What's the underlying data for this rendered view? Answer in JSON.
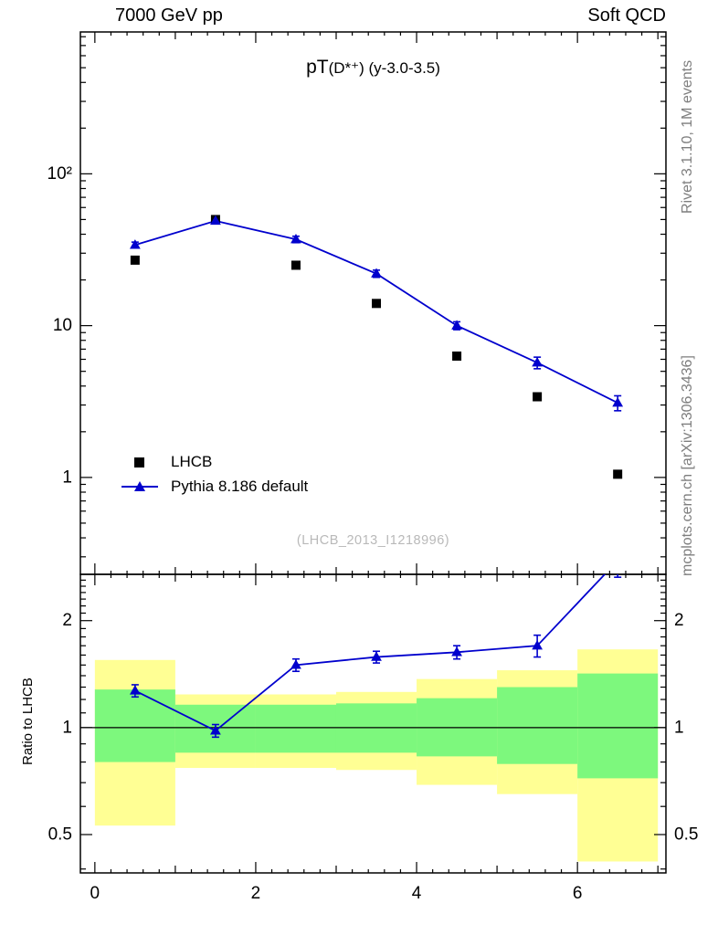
{
  "header": {
    "left": "7000 GeV pp",
    "right": "Soft QCD"
  },
  "main_panel": {
    "title_lead": "pT",
    "title_sub": "(D*⁺) (y-3.0-3.5)",
    "title_full": "pT(D*⁺) (y-3.0-3.5)",
    "watermark": "(LHCB_2013_I1218996)"
  },
  "ratio_panel": {
    "ylabel": "Ratio to LHCB"
  },
  "side_labels": {
    "top_right": "Rivet 3.1.10,  1M events",
    "bottom_right": "mcplots.cern.ch [arXiv:1306.3436]"
  },
  "legend": [
    {
      "label": "LHCB",
      "marker": "filled-square"
    },
    {
      "label": "Pythia 8.186 default",
      "marker": "line-with-triangle"
    }
  ],
  "colors": {
    "lhcb": "#000000",
    "pythia": "#0000cd",
    "band_yellow": "#ffff94",
    "band_green": "#7df87d",
    "frame": "#000000",
    "watermark": "#b9b9b9",
    "side_text": "#7e7e7e"
  },
  "chart_data": {
    "type": "line",
    "title": "pT(D*⁺) (y-3.0-3.5)",
    "x": [
      0.5,
      1.5,
      2.5,
      3.5,
      4.5,
      5.5,
      6.5
    ],
    "bin_width": 1,
    "series": [
      {
        "name": "LHCB",
        "marker": "square",
        "color": "#000000",
        "values": [
          27,
          50,
          25,
          14,
          6.3,
          3.4,
          1.05
        ]
      },
      {
        "name": "Pythia 8.186 default",
        "marker": "triangle",
        "color": "#0000cd",
        "values": [
          34,
          49,
          37,
          22,
          10,
          5.7,
          3.1
        ],
        "errors": [
          1.5,
          1.5,
          1.8,
          1.2,
          0.6,
          0.5,
          0.35
        ]
      }
    ],
    "x_axis": {
      "range": [
        -0.18,
        7.1
      ],
      "ticks": [
        {
          "v": 0,
          "label": "0"
        },
        {
          "v": 2,
          "label": "2"
        },
        {
          "v": 4,
          "label": "4"
        },
        {
          "v": 6,
          "label": "6"
        }
      ],
      "minor_step": 0.2
    },
    "main_axis": {
      "scale": "log",
      "range": [
        0.23,
        860
      ],
      "ticks": [
        {
          "v": 1,
          "label": "1"
        },
        {
          "v": 10,
          "label": "10"
        },
        {
          "v": 100,
          "label": "10²"
        }
      ]
    },
    "ratio": {
      "scale": "log",
      "range": [
        0.39,
        2.7
      ],
      "ticks": [
        {
          "v": 0.5,
          "label": "0.5"
        },
        {
          "v": 1,
          "label": "1"
        },
        {
          "v": 2,
          "label": "2"
        }
      ],
      "values": [
        1.27,
        0.98,
        1.5,
        1.58,
        1.63,
        1.7,
        2.95
      ],
      "errors": [
        0.05,
        0.04,
        0.06,
        0.06,
        0.07,
        0.12,
        0.3
      ],
      "unity": 1,
      "bands": [
        {
          "x0": 0,
          "x1": 1,
          "yellow": [
            0.53,
            1.55
          ],
          "green": [
            0.8,
            1.28
          ]
        },
        {
          "x0": 1,
          "x1": 2,
          "yellow": [
            0.77,
            1.24
          ],
          "green": [
            0.85,
            1.16
          ]
        },
        {
          "x0": 2,
          "x1": 3,
          "yellow": [
            0.77,
            1.24
          ],
          "green": [
            0.85,
            1.16
          ]
        },
        {
          "x0": 3,
          "x1": 4,
          "yellow": [
            0.76,
            1.26
          ],
          "green": [
            0.85,
            1.17
          ]
        },
        {
          "x0": 4,
          "x1": 5,
          "yellow": [
            0.69,
            1.37
          ],
          "green": [
            0.83,
            1.21
          ]
        },
        {
          "x0": 5,
          "x1": 6,
          "yellow": [
            0.65,
            1.45
          ],
          "green": [
            0.79,
            1.3
          ]
        },
        {
          "x0": 6,
          "x1": 7,
          "yellow": [
            0.42,
            1.66
          ],
          "green": [
            0.72,
            1.42
          ]
        }
      ]
    }
  }
}
